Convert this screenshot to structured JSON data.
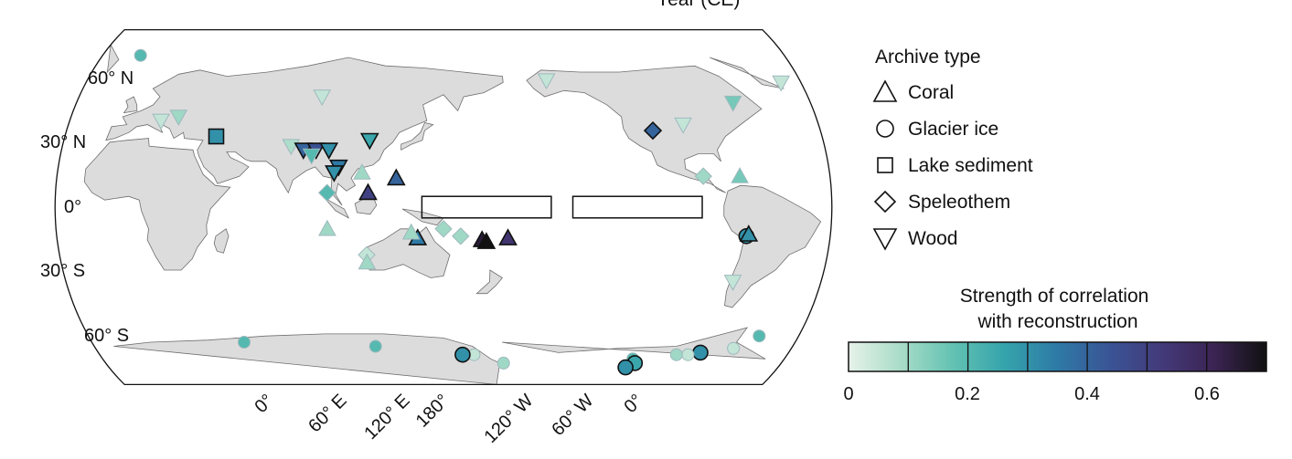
{
  "clipped_title": "Year (CE)",
  "lat_labels": [
    "60° N",
    "30° N",
    "0°",
    "30° S",
    "60° S"
  ],
  "lon_labels": [
    "0°",
    "60° E",
    "120° E",
    "180°",
    "120° W",
    "60° W",
    "0°"
  ],
  "legend": {
    "title": "Archive type",
    "items": [
      {
        "label": "Coral",
        "shape": "triangle"
      },
      {
        "label": "Glacier ice",
        "shape": "circle"
      },
      {
        "label": "Lake sediment",
        "shape": "square"
      },
      {
        "label": "Speleothem",
        "shape": "diamond"
      },
      {
        "label": "Wood",
        "shape": "triangle-down"
      }
    ]
  },
  "colorbar": {
    "title_line1": "Strength of correlation",
    "title_line2": "with reconstruction",
    "ticks": [
      "0",
      "0.2",
      "0.4",
      "0.6"
    ],
    "min": 0,
    "max": 0.7,
    "colors": [
      "#e6f2ea",
      "#a9dcc8",
      "#62c2b2",
      "#35a3ac",
      "#2e7aa6",
      "#3a5495",
      "#433a7a",
      "#3b2453",
      "#111111"
    ]
  },
  "colors": {
    "land": "#dcdcdc",
    "coast": "#6e6e6e",
    "ocean": "#ffffff"
  },
  "regions": [
    {
      "name": "west-pacific-box",
      "lon_min": 140,
      "lon_max": 200,
      "lat_min": -6,
      "lat_max": 6
    },
    {
      "name": "east-pacific-box",
      "lon_min": 210,
      "lon_max": 270,
      "lat_min": -6,
      "lat_max": 6
    }
  ],
  "sites": [
    {
      "type": "glacier",
      "lon": -10,
      "lat": 78,
      "r": 0.2
    },
    {
      "type": "wood",
      "lon": -158,
      "lat": 66,
      "r": 0.05
    },
    {
      "type": "wood",
      "lon": 22,
      "lat": 48,
      "r": 0.1
    },
    {
      "type": "wood",
      "lon": 14,
      "lat": 46,
      "r": 0.05
    },
    {
      "type": "wood",
      "lon": 90,
      "lat": 58,
      "r": 0.05
    },
    {
      "type": "lake",
      "lon": 42,
      "lat": 38,
      "r": 0.3
    },
    {
      "type": "wood",
      "lon": 78,
      "lat": 33,
      "r": 0.08
    },
    {
      "type": "wood",
      "lon": 84,
      "lat": 31,
      "r": 0.4
    },
    {
      "type": "wood",
      "lon": 90,
      "lat": 31,
      "r": 0.45
    },
    {
      "type": "wood",
      "lon": 96,
      "lat": 31,
      "r": 0.3
    },
    {
      "type": "wood",
      "lon": 88,
      "lat": 28,
      "r": 0.2
    },
    {
      "type": "wood",
      "lon": 115,
      "lat": 36,
      "r": 0.25
    },
    {
      "type": "wood",
      "lon": 101,
      "lat": 22,
      "r": 0.35
    },
    {
      "type": "wood",
      "lon": 99,
      "lat": 19,
      "r": 0.3
    },
    {
      "type": "coral",
      "lon": 112,
      "lat": 19,
      "r": 0.1
    },
    {
      "type": "coral",
      "lon": 128,
      "lat": 16,
      "r": 0.4
    },
    {
      "type": "coral",
      "lon": 115,
      "lat": 8,
      "r": 0.5
    },
    {
      "type": "speleothem",
      "lon": 96,
      "lat": 8,
      "r": 0.2
    },
    {
      "type": "coral",
      "lon": 96,
      "lat": -12,
      "r": 0.1
    },
    {
      "type": "coral",
      "lon": 138,
      "lat": -17,
      "r": 0.35
    },
    {
      "type": "coral",
      "lon": 135,
      "lat": -14,
      "r": 0.1
    },
    {
      "type": "speleothem",
      "lon": 150,
      "lat": -12,
      "r": 0.1
    },
    {
      "type": "speleothem",
      "lon": 158,
      "lat": -16,
      "r": 0.1
    },
    {
      "type": "coral",
      "lon": 168,
      "lat": -18,
      "r": 0.65
    },
    {
      "type": "coral",
      "lon": 170,
      "lat": -19,
      "r": 0.7
    },
    {
      "type": "coral",
      "lon": 180,
      "lat": -17,
      "r": 0.55
    },
    {
      "type": "speleothem",
      "lon": 114,
      "lat": -26,
      "r": 0.05
    },
    {
      "type": "coral",
      "lon": 114,
      "lat": -30,
      "r": 0.1
    },
    {
      "type": "speleothem",
      "lon": -110,
      "lat": 41,
      "r": 0.4
    },
    {
      "type": "wood",
      "lon": -95,
      "lat": 44,
      "r": 0.05
    },
    {
      "type": "wood",
      "lon": -68,
      "lat": 55,
      "r": 0.15
    },
    {
      "type": "wood",
      "lon": -40,
      "lat": 65,
      "r": 0.05
    },
    {
      "type": "speleothem",
      "lon": -89,
      "lat": 17,
      "r": 0.1
    },
    {
      "type": "coral",
      "lon": -72,
      "lat": 17,
      "r": 0.15
    },
    {
      "type": "glacier",
      "lon": -69,
      "lat": -16,
      "r": 0.3
    },
    {
      "type": "coral",
      "lon": -68,
      "lat": -15,
      "r": 0.3
    },
    {
      "type": "wood",
      "lon": -72,
      "lat": -40,
      "r": 0.05
    },
    {
      "type": "glacier",
      "lon": -110,
      "lat": -78,
      "r": 0.2
    },
    {
      "type": "glacier",
      "lon": -108,
      "lat": -80,
      "r": 0.25
    },
    {
      "type": "glacier",
      "lon": -112,
      "lat": -82,
      "r": 0.3
    },
    {
      "type": "glacier",
      "lon": -76,
      "lat": -75,
      "r": 0.3
    },
    {
      "type": "glacier",
      "lon": -82,
      "lat": -76,
      "r": 0.05
    },
    {
      "type": "glacier",
      "lon": -88,
      "lat": -76,
      "r": 0.1
    },
    {
      "type": "glacier",
      "lon": -60,
      "lat": -73,
      "r": 0.05
    },
    {
      "type": "glacier",
      "lon": -50,
      "lat": -67,
      "r": 0.2
    },
    {
      "type": "glacier",
      "lon": 166,
      "lat": -76,
      "r": 0.05
    },
    {
      "type": "glacier",
      "lon": -178,
      "lat": -80,
      "r": 0.1
    },
    {
      "type": "glacier",
      "lon": 115,
      "lat": -72,
      "r": 0.2
    },
    {
      "type": "glacier",
      "lon": 48,
      "lat": -70,
      "r": 0.2
    },
    {
      "type": "glacier",
      "lon": 160,
      "lat": -76,
      "r": 0.3
    }
  ]
}
